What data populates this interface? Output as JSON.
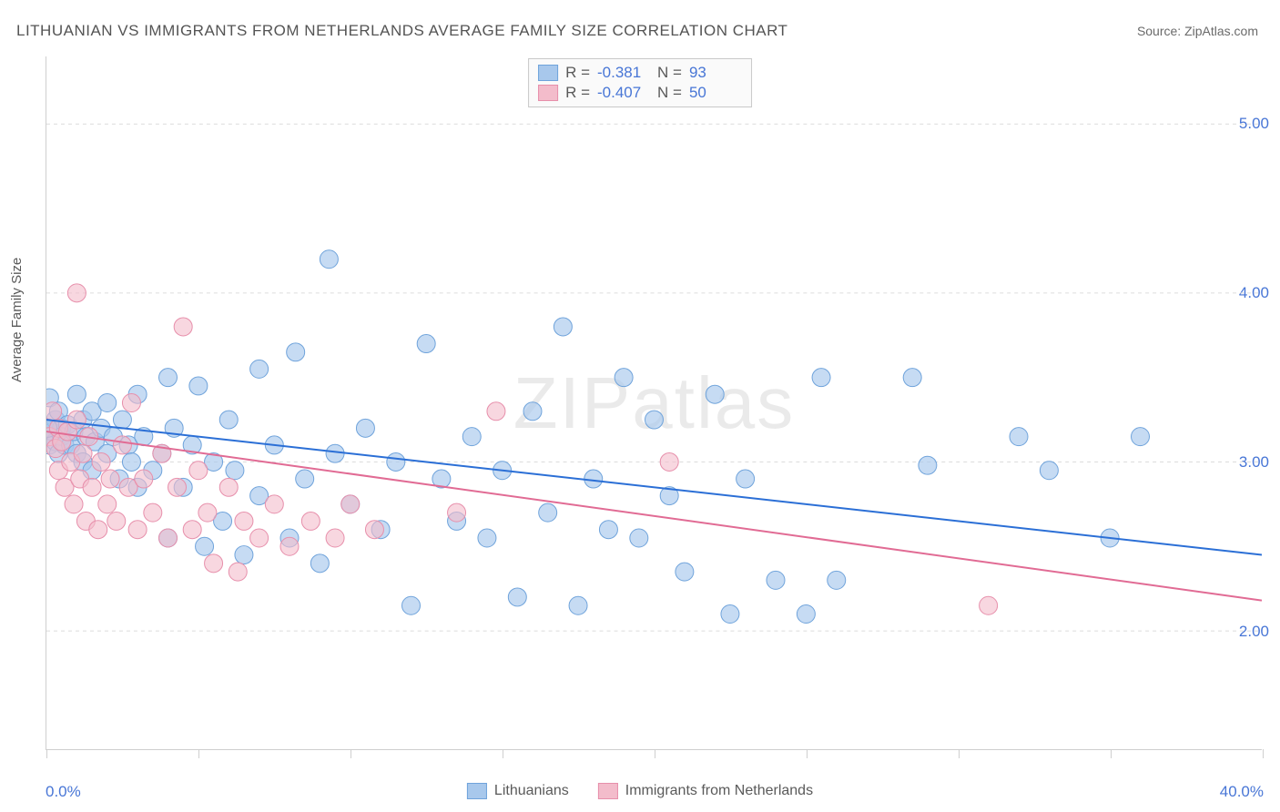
{
  "title": "LITHUANIAN VS IMMIGRANTS FROM NETHERLANDS AVERAGE FAMILY SIZE CORRELATION CHART",
  "source_prefix": "Source: ",
  "source_name": "ZipAtlas.com",
  "watermark": "ZIPatlas",
  "ylabel": "Average Family Size",
  "chart": {
    "type": "scatter-with-trendlines",
    "xlim": [
      0,
      40
    ],
    "ylim": [
      1.3,
      5.4
    ],
    "xtick_positions": [
      0,
      5,
      10,
      15,
      20,
      25,
      30,
      35,
      40
    ],
    "xtick_labels_shown": {
      "0": "0.0%",
      "40": "40.0%"
    },
    "ytick_positions": [
      2,
      3,
      4,
      5
    ],
    "ytick_labels": [
      "2.00",
      "3.00",
      "4.00",
      "5.00"
    ],
    "grid_color": "#dcdcdc",
    "axis_color": "#cfcfcf",
    "background_color": "#ffffff",
    "ylabel_fontsize": 15,
    "tick_label_color": "#4876d6",
    "tick_label_fontsize": 17,
    "title_fontsize": 17,
    "title_color": "#545454",
    "series": [
      {
        "name": "Lithuanians",
        "marker_fill": "#a8c8ec",
        "marker_stroke": "#6fa3db",
        "marker_fill_opacity": 0.65,
        "marker_radius": 10,
        "trend_color": "#2b6fd6",
        "trend_width": 2,
        "trend_start": [
          0,
          3.25
        ],
        "trend_end": [
          40,
          2.45
        ],
        "R_label": "R =",
        "R_value": "-0.381",
        "N_label": "N =",
        "N_value": "93",
        "points": [
          [
            0.0,
            3.2
          ],
          [
            0.1,
            3.38
          ],
          [
            0.1,
            3.1
          ],
          [
            0.2,
            3.18
          ],
          [
            0.3,
            3.25
          ],
          [
            0.3,
            3.12
          ],
          [
            0.4,
            3.3
          ],
          [
            0.4,
            3.05
          ],
          [
            0.5,
            3.2
          ],
          [
            0.5,
            3.15
          ],
          [
            0.6,
            3.1
          ],
          [
            0.7,
            3.22
          ],
          [
            0.8,
            3.1
          ],
          [
            0.9,
            3.18
          ],
          [
            1.0,
            3.05
          ],
          [
            1.0,
            3.4
          ],
          [
            1.2,
            3.25
          ],
          [
            1.2,
            3.0
          ],
          [
            1.3,
            3.15
          ],
          [
            1.5,
            3.3
          ],
          [
            1.5,
            2.95
          ],
          [
            1.6,
            3.12
          ],
          [
            1.8,
            3.2
          ],
          [
            2.0,
            3.35
          ],
          [
            2.0,
            3.05
          ],
          [
            2.2,
            3.15
          ],
          [
            2.4,
            2.9
          ],
          [
            2.5,
            3.25
          ],
          [
            2.7,
            3.1
          ],
          [
            2.8,
            3.0
          ],
          [
            3.0,
            3.4
          ],
          [
            3.0,
            2.85
          ],
          [
            3.2,
            3.15
          ],
          [
            3.5,
            2.95
          ],
          [
            3.8,
            3.05
          ],
          [
            4.0,
            3.5
          ],
          [
            4.0,
            2.55
          ],
          [
            4.2,
            3.2
          ],
          [
            4.5,
            2.85
          ],
          [
            4.8,
            3.1
          ],
          [
            5.0,
            3.45
          ],
          [
            5.2,
            2.5
          ],
          [
            5.5,
            3.0
          ],
          [
            5.8,
            2.65
          ],
          [
            6.0,
            3.25
          ],
          [
            6.2,
            2.95
          ],
          [
            6.5,
            2.45
          ],
          [
            7.0,
            3.55
          ],
          [
            7.0,
            2.8
          ],
          [
            7.5,
            3.1
          ],
          [
            8.0,
            2.55
          ],
          [
            8.2,
            3.65
          ],
          [
            8.5,
            2.9
          ],
          [
            9.0,
            2.4
          ],
          [
            9.3,
            4.2
          ],
          [
            9.5,
            3.05
          ],
          [
            10.0,
            2.75
          ],
          [
            10.5,
            3.2
          ],
          [
            11.0,
            2.6
          ],
          [
            11.5,
            3.0
          ],
          [
            12.0,
            2.15
          ],
          [
            12.5,
            3.7
          ],
          [
            13.0,
            2.9
          ],
          [
            13.5,
            2.65
          ],
          [
            14.0,
            3.15
          ],
          [
            14.5,
            2.55
          ],
          [
            15.0,
            2.95
          ],
          [
            15.5,
            2.2
          ],
          [
            16.0,
            3.3
          ],
          [
            16.5,
            2.7
          ],
          [
            17.0,
            3.8
          ],
          [
            17.5,
            2.15
          ],
          [
            18.0,
            2.9
          ],
          [
            18.5,
            2.6
          ],
          [
            19.0,
            3.5
          ],
          [
            19.5,
            2.55
          ],
          [
            20.0,
            3.25
          ],
          [
            20.5,
            2.8
          ],
          [
            21.0,
            2.35
          ],
          [
            22.0,
            3.4
          ],
          [
            22.5,
            2.1
          ],
          [
            23.0,
            2.9
          ],
          [
            24.0,
            2.3
          ],
          [
            25.0,
            2.1
          ],
          [
            25.5,
            3.5
          ],
          [
            26.0,
            2.3
          ],
          [
            28.5,
            3.5
          ],
          [
            29.0,
            2.98
          ],
          [
            32.0,
            3.15
          ],
          [
            33.0,
            2.95
          ],
          [
            35.0,
            2.55
          ],
          [
            36.0,
            3.15
          ],
          [
            0.05,
            3.2
          ]
        ]
      },
      {
        "name": "Immigrants from Netherlands",
        "marker_fill": "#f3bccb",
        "marker_stroke": "#e78fab",
        "marker_fill_opacity": 0.6,
        "marker_radius": 10,
        "trend_color": "#e16b94",
        "trend_width": 2,
        "trend_start": [
          0,
          3.18
        ],
        "trend_end": [
          40,
          2.18
        ],
        "R_label": "R =",
        "R_value": "-0.407",
        "N_label": "N =",
        "N_value": "50",
        "points": [
          [
            0.1,
            3.15
          ],
          [
            0.2,
            3.3
          ],
          [
            0.3,
            3.08
          ],
          [
            0.4,
            3.2
          ],
          [
            0.4,
            2.95
          ],
          [
            0.5,
            3.12
          ],
          [
            0.6,
            2.85
          ],
          [
            0.7,
            3.18
          ],
          [
            0.8,
            3.0
          ],
          [
            0.9,
            2.75
          ],
          [
            1.0,
            3.25
          ],
          [
            1.0,
            4.0
          ],
          [
            1.1,
            2.9
          ],
          [
            1.2,
            3.05
          ],
          [
            1.3,
            2.65
          ],
          [
            1.4,
            3.15
          ],
          [
            1.5,
            2.85
          ],
          [
            1.7,
            2.6
          ],
          [
            1.8,
            3.0
          ],
          [
            2.0,
            2.75
          ],
          [
            2.1,
            2.9
          ],
          [
            2.3,
            2.65
          ],
          [
            2.5,
            3.1
          ],
          [
            2.7,
            2.85
          ],
          [
            2.8,
            3.35
          ],
          [
            3.0,
            2.6
          ],
          [
            3.2,
            2.9
          ],
          [
            3.5,
            2.7
          ],
          [
            3.8,
            3.05
          ],
          [
            4.0,
            2.55
          ],
          [
            4.3,
            2.85
          ],
          [
            4.5,
            3.8
          ],
          [
            4.8,
            2.6
          ],
          [
            5.0,
            2.95
          ],
          [
            5.3,
            2.7
          ],
          [
            5.5,
            2.4
          ],
          [
            6.0,
            2.85
          ],
          [
            6.5,
            2.65
          ],
          [
            7.0,
            2.55
          ],
          [
            7.5,
            2.75
          ],
          [
            8.0,
            2.5
          ],
          [
            8.7,
            2.65
          ],
          [
            9.5,
            2.55
          ],
          [
            10.0,
            2.75
          ],
          [
            10.8,
            2.6
          ],
          [
            13.5,
            2.7
          ],
          [
            14.8,
            3.3
          ],
          [
            20.5,
            3.0
          ],
          [
            31.0,
            2.15
          ],
          [
            6.3,
            2.35
          ]
        ]
      }
    ]
  }
}
